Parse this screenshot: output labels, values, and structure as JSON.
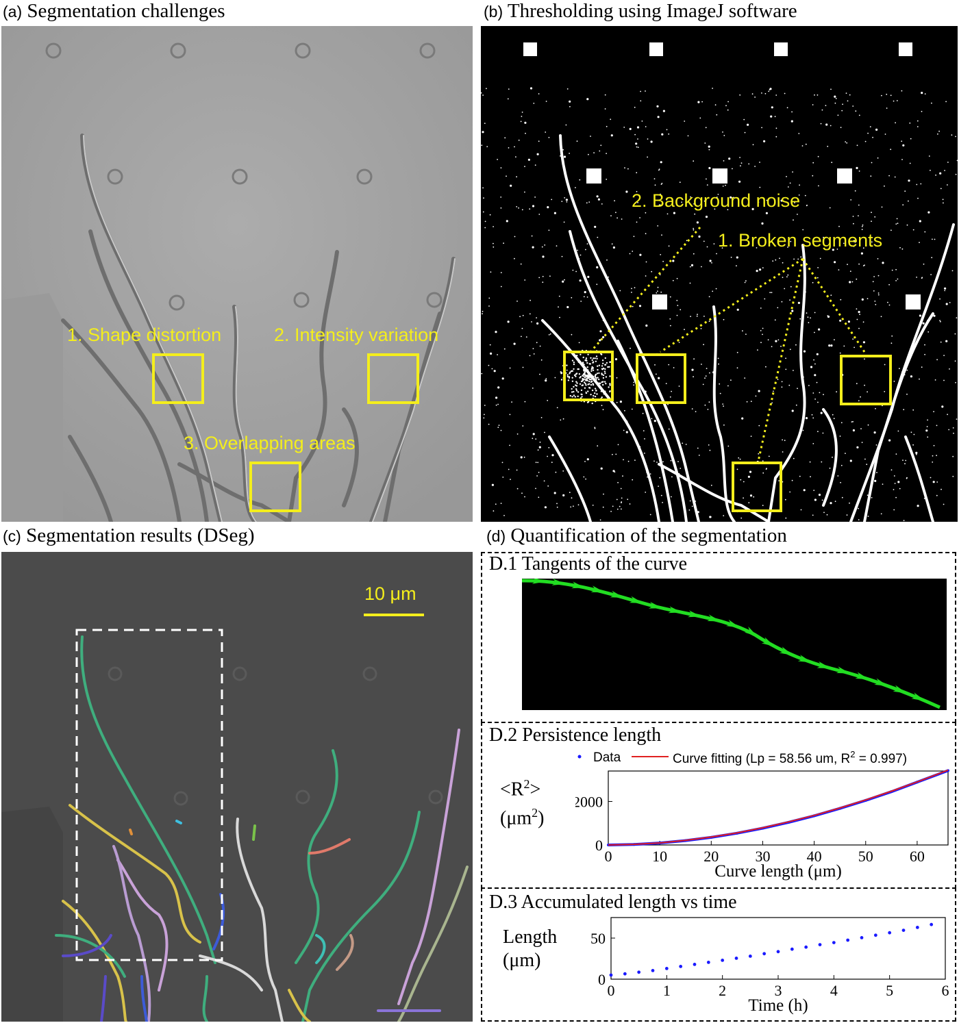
{
  "panels": {
    "a": {
      "label": "(a)",
      "title": "Segmentation challenges",
      "annotations": [
        "1. Shape distortion",
        "2. Intensity variation",
        "3. Overlapping areas"
      ]
    },
    "b": {
      "label": "(b)",
      "title": "Thresholding using ImageJ software",
      "annotations": [
        "2. Background noise",
        "1. Broken segments"
      ]
    },
    "c": {
      "label": "(c)",
      "title": "Segmentation results (DSeg)",
      "scale_bar": "10 μm"
    },
    "d": {
      "label": "(d)",
      "title": "Quantification of the segmentation",
      "d1_title": "D.1 Tangents of the curve",
      "d2_title": "D.2 Persistence length",
      "d3_title": "D.3 Accumulated length vs time"
    }
  },
  "colors": {
    "annotation": "#f4ee1c",
    "tangent": "#22dd22",
    "data": "#1a1aff",
    "fit": "#e02020"
  },
  "chart_data": [
    {
      "type": "line",
      "title": "D.2 Persistence length",
      "xlabel": "Curve length (μm)",
      "ylabel_line1": "<R",
      "ylabel_sup": "2",
      "ylabel_end": ">",
      "ylabel_unit": "(μm",
      "ylabel_unit_end": ")",
      "xlim": [
        0,
        66
      ],
      "ylim": [
        0,
        3400
      ],
      "xticks": [
        "0",
        "10",
        "20",
        "30",
        "40",
        "50",
        "60"
      ],
      "yticks": [
        "0",
        "2000"
      ],
      "legend": {
        "data_label": "Data",
        "fit_label": "Curve fitting (Lp = 58.56  um, R",
        "fit_sup": "2",
        "fit_end": " = 0.997)"
      },
      "series": [
        {
          "name": "Data",
          "style": "points",
          "x": [
            0,
            5,
            10,
            15,
            20,
            25,
            30,
            35,
            40,
            45,
            50,
            55,
            60,
            66
          ],
          "y": [
            0,
            25,
            90,
            200,
            350,
            540,
            770,
            1040,
            1340,
            1680,
            2050,
            2450,
            2890,
            3420
          ]
        },
        {
          "name": "Curve fitting",
          "style": "line",
          "x": [
            0,
            5,
            10,
            15,
            20,
            25,
            30,
            35,
            40,
            45,
            50,
            55,
            60,
            66
          ],
          "y": [
            0,
            27,
            95,
            210,
            365,
            555,
            790,
            1060,
            1360,
            1700,
            2070,
            2470,
            2900,
            3440
          ]
        }
      ]
    },
    {
      "type": "scatter",
      "title": "D.3 Accumulated length vs time",
      "xlabel": "Time (h)",
      "ylabel_line1": "Length",
      "ylabel_unit": "(μm)",
      "xlim": [
        0,
        6
      ],
      "ylim": [
        0,
        75
      ],
      "xticks": [
        "0",
        "1",
        "2",
        "3",
        "4",
        "5",
        "6"
      ],
      "yticks": [
        "0",
        "50"
      ],
      "series": [
        {
          "name": "Length",
          "x": [
            0,
            0.25,
            0.5,
            0.75,
            1,
            1.25,
            1.5,
            1.75,
            2,
            2.25,
            2.5,
            2.75,
            3,
            3.25,
            3.5,
            3.75,
            4,
            4.25,
            4.5,
            4.75,
            5,
            5.25,
            5.5,
            5.75
          ],
          "y": [
            5,
            6.5,
            8.5,
            10.5,
            13,
            15.5,
            18,
            20.5,
            23,
            25.5,
            28,
            31,
            33.5,
            36.5,
            39,
            42,
            44.5,
            47.5,
            50.5,
            53.5,
            56.5,
            59.5,
            63,
            66.5
          ]
        }
      ]
    }
  ]
}
